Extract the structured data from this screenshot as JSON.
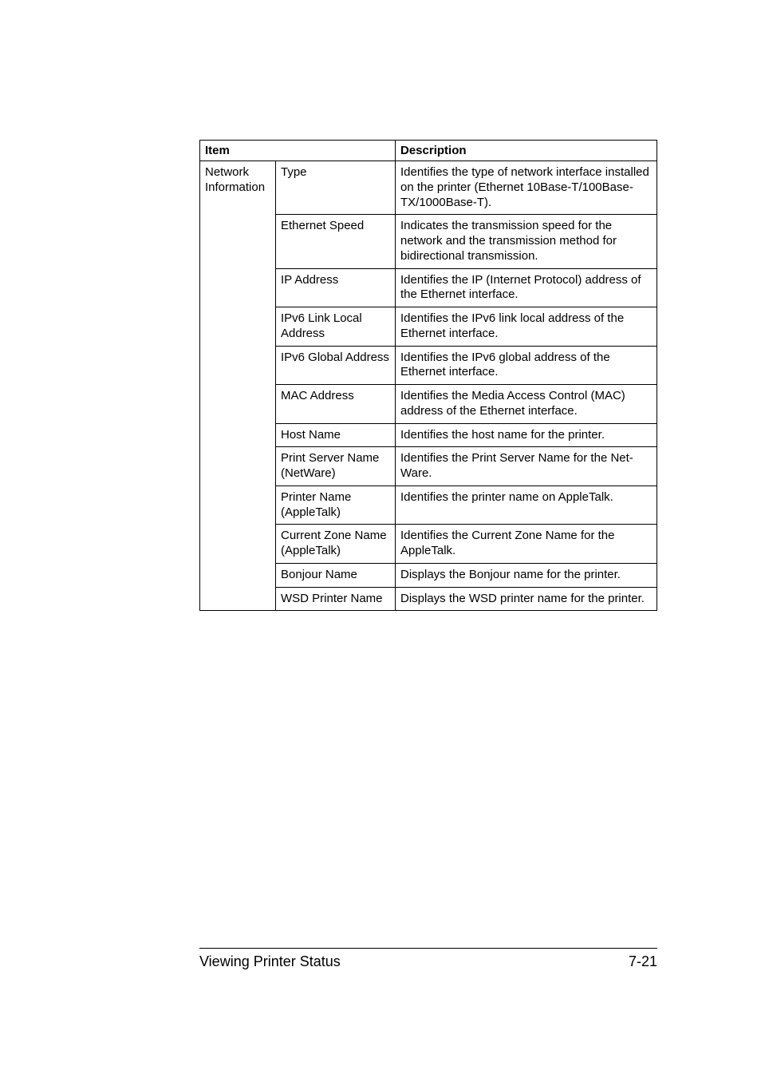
{
  "header": {
    "item": "Item",
    "description": "Description"
  },
  "group": {
    "label": "Network Information"
  },
  "rows": [
    {
      "item": "Type",
      "desc": "Identifies the type of network interface installed on the printer (Ethernet 10Base-T/100Base-TX/1000Base-T)."
    },
    {
      "item": "Ethernet Speed",
      "desc": "Indicates the transmission speed for the network and the transmission method for bidirectional transmission."
    },
    {
      "item": "IP Address",
      "desc": "Identifies the IP (Internet Protocol) address of the Ethernet interface."
    },
    {
      "item": "IPv6 Link Local Address",
      "desc": "Identifies the IPv6 link local address of the Ethernet interface."
    },
    {
      "item": "IPv6 Global Address",
      "desc": "Identifies the IPv6 global address of the Ethernet interface."
    },
    {
      "item": "MAC Address",
      "desc": "Identifies the Media Access Control (MAC) address of the Ethernet interface."
    },
    {
      "item": "Host Name",
      "desc": "Identifies the host name for the printer."
    },
    {
      "item": "Print Server Name (NetWare)",
      "desc": "Identifies the Print Server Name for the Net-Ware."
    },
    {
      "item": "Printer Name (AppleTalk)",
      "desc": "Identifies the printer name on AppleTalk."
    },
    {
      "item": "Current Zone Name (AppleTalk)",
      "desc": "Identifies the Current Zone Name for the AppleTalk."
    },
    {
      "item": "Bonjour Name",
      "desc": "Displays the Bonjour name for the printer."
    },
    {
      "item": "WSD Printer Name",
      "desc": "Displays the WSD printer name for the printer."
    }
  ],
  "footer": {
    "left": "Viewing Printer Status",
    "right": "7-21"
  }
}
